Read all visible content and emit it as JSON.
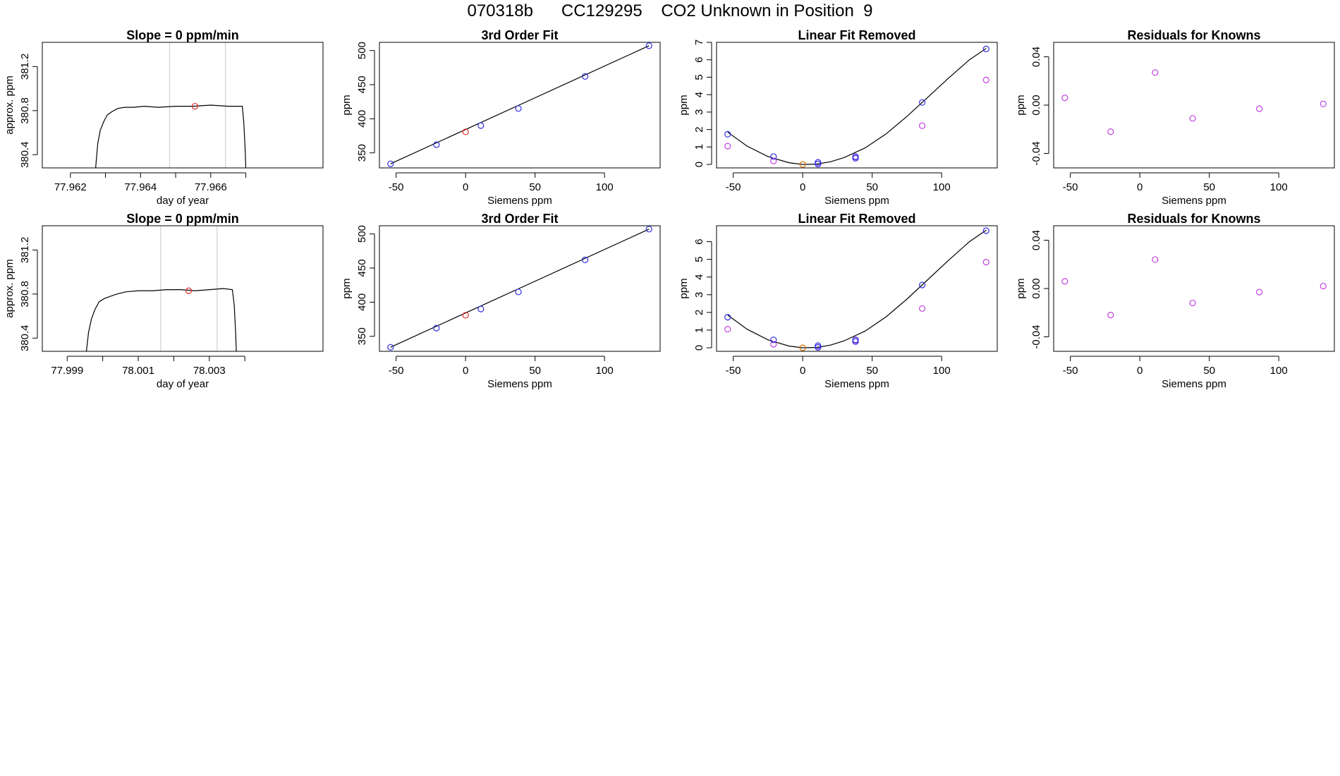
{
  "header": {
    "title": "070318b      CC129295    CO2 Unknown in Position  9"
  },
  "colors": {
    "known": "#2f2fe0",
    "unknown": "#e02f2f",
    "removed": "#d07000",
    "residual": "#c040e0",
    "line": "#000000",
    "refline": "#c8c8c8"
  },
  "chart_data": [
    {
      "type": "line",
      "title": "Slope =  0  ppm/min",
      "xlabel": "day of year",
      "ylabel": "approx. ppm",
      "xlim": [
        77.9612,
        77.9692
      ],
      "ylim": [
        380.28,
        381.42
      ],
      "xticks": [
        77.962,
        77.963,
        77.964,
        77.965,
        77.966,
        77.967
      ],
      "xtick_labels": [
        "77.962",
        "",
        "77.964",
        "",
        "77.966",
        ""
      ],
      "yticks": [
        380.4,
        380.8,
        381.2
      ],
      "ytick_labels": [
        "380.4",
        "380.8",
        "381.2"
      ],
      "vlines": [
        77.96483,
        77.96642
      ],
      "series": [
        {
          "x": [
            77.96272,
            77.96278,
            77.96285,
            77.96295,
            77.96305,
            77.96318,
            77.96335,
            77.96355,
            77.9638,
            77.9641,
            77.9645,
            77.965,
            77.9655,
            77.966,
            77.9665,
            77.9668,
            77.9669,
            77.96694,
            77.96698,
            77.967
          ],
          "y": [
            380.28,
            380.5,
            380.62,
            380.7,
            380.76,
            380.79,
            380.82,
            380.83,
            380.83,
            380.84,
            380.83,
            380.84,
            380.84,
            380.85,
            380.84,
            380.84,
            380.84,
            380.7,
            380.45,
            380.28
          ]
        }
      ],
      "marker": {
        "x": 77.96555,
        "y": 380.84
      }
    },
    {
      "type": "scatter",
      "title": "3rd Order Fit",
      "xlabel": "Siemens ppm",
      "ylabel": "ppm",
      "xlim": [
        -62,
        140
      ],
      "ylim": [
        328,
        512
      ],
      "xticks": [
        -50,
        0,
        50,
        100
      ],
      "xtick_labels": [
        "-50",
        "0",
        "50",
        "100"
      ],
      "yticks": [
        350,
        400,
        450,
        500
      ],
      "ytick_labels": [
        "350",
        "400",
        "450",
        "500"
      ],
      "known": {
        "x": [
          -54,
          -21,
          11,
          38,
          86,
          132
        ],
        "y": [
          334,
          362,
          390,
          415,
          462,
          507
        ]
      },
      "unknown": {
        "x": [
          0
        ],
        "y": [
          380.8
        ]
      },
      "fit": {
        "x": [
          -54,
          132
        ],
        "y": [
          334,
          507
        ]
      }
    },
    {
      "type": "scatter",
      "title": "Linear Fit Removed",
      "xlabel": "Siemens ppm",
      "ylabel": "ppm",
      "xlim": [
        -62,
        140
      ],
      "ylim": [
        -0.2,
        7.0
      ],
      "xticks": [
        -50,
        0,
        50,
        100
      ],
      "xtick_labels": [
        "-50",
        "0",
        "50",
        "100"
      ],
      "yticks": [
        0,
        1,
        2,
        3,
        4,
        5,
        6,
        7
      ],
      "ytick_labels": [
        "0",
        "1",
        "2",
        "3",
        "4",
        "5",
        "6",
        "7"
      ],
      "known": {
        "x": [
          -54,
          -21,
          11,
          11,
          38,
          38,
          86,
          132
        ],
        "y": [
          1.73,
          0.45,
          0.12,
          0.03,
          0.35,
          0.45,
          3.55,
          6.62
        ]
      },
      "residual": {
        "x": [
          -54,
          -21,
          11,
          38,
          86,
          132
        ],
        "y": [
          1.05,
          0.2,
          0.02,
          0.42,
          2.22,
          4.84
        ]
      },
      "unknown": {
        "x": [
          0
        ],
        "y": [
          0.0
        ]
      },
      "curve": {
        "x": [
          -54,
          -40,
          -25,
          -10,
          0,
          10,
          20,
          30,
          45,
          60,
          75,
          90,
          105,
          120,
          132
        ],
        "y": [
          1.85,
          1.05,
          0.45,
          0.1,
          0.0,
          0.02,
          0.15,
          0.4,
          0.95,
          1.75,
          2.75,
          3.85,
          4.95,
          6.0,
          6.65
        ]
      }
    },
    {
      "type": "scatter",
      "title": "Residuals for Knowns",
      "xlabel": "Siemens ppm",
      "ylabel": "ppm",
      "xlim": [
        -62,
        140
      ],
      "ylim": [
        -0.052,
        0.052
      ],
      "xticks": [
        -50,
        0,
        50,
        100
      ],
      "xtick_labels": [
        "-50",
        "0",
        "50",
        "100"
      ],
      "yticks": [
        -0.04,
        0.0,
        0.04
      ],
      "ytick_labels": [
        "-0.04",
        "0.00",
        "0.04"
      ],
      "residual": {
        "x": [
          -54,
          -21,
          11,
          38,
          86,
          132
        ],
        "y": [
          0.006,
          -0.022,
          0.027,
          -0.011,
          -0.003,
          0.001
        ]
      }
    },
    {
      "type": "line",
      "title": "Slope =  0  ppm/min",
      "xlabel": "day of year",
      "ylabel": "approx. ppm",
      "xlim": [
        77.9983,
        78.0062
      ],
      "ylim": [
        380.28,
        381.42
      ],
      "xticks": [
        77.999,
        78.0,
        78.001,
        78.002,
        78.003,
        78.004
      ],
      "xtick_labels": [
        "77.999",
        "",
        "78.001",
        "",
        "78.003",
        ""
      ],
      "yticks": [
        380.4,
        380.8,
        381.2
      ],
      "ytick_labels": [
        "380.4",
        "380.8",
        "381.2"
      ],
      "vlines": [
        78.00163,
        78.00322
      ],
      "series": [
        {
          "x": [
            77.99954,
            77.9996,
            77.99968,
            77.99978,
            77.9999,
            78.00005,
            78.00022,
            78.0004,
            78.00065,
            78.001,
            78.0014,
            78.0018,
            78.0022,
            78.0026,
            78.003,
            78.0034,
            78.00365,
            78.0037,
            78.00374,
            78.00376
          ],
          "y": [
            380.28,
            380.45,
            380.57,
            380.66,
            380.73,
            380.76,
            380.78,
            380.8,
            380.82,
            380.83,
            380.83,
            380.84,
            380.84,
            380.83,
            380.84,
            380.85,
            380.84,
            380.7,
            380.45,
            380.28
          ]
        }
      ],
      "marker": {
        "x": 78.00242,
        "y": 380.83
      }
    },
    {
      "type": "scatter",
      "title": "3rd Order Fit",
      "xlabel": "Siemens ppm",
      "ylabel": "ppm",
      "xlim": [
        -62,
        140
      ],
      "ylim": [
        328,
        512
      ],
      "xticks": [
        -50,
        0,
        50,
        100
      ],
      "xtick_labels": [
        "-50",
        "0",
        "50",
        "100"
      ],
      "yticks": [
        350,
        400,
        450,
        500
      ],
      "ytick_labels": [
        "350",
        "400",
        "450",
        "500"
      ],
      "known": {
        "x": [
          -54,
          -21,
          11,
          38,
          86,
          132
        ],
        "y": [
          334,
          362,
          390,
          415,
          462,
          507
        ]
      },
      "unknown": {
        "x": [
          0
        ],
        "y": [
          380.8
        ]
      },
      "fit": {
        "x": [
          -54,
          132
        ],
        "y": [
          334,
          507
        ]
      }
    },
    {
      "type": "scatter",
      "title": "Linear Fit Removed",
      "xlabel": "Siemens ppm",
      "ylabel": "ppm",
      "xlim": [
        -62,
        140
      ],
      "ylim": [
        -0.2,
        6.9
      ],
      "xticks": [
        -50,
        0,
        50,
        100
      ],
      "xtick_labels": [
        "-50",
        "0",
        "50",
        "100"
      ],
      "yticks": [
        0,
        1,
        2,
        3,
        4,
        5,
        6
      ],
      "ytick_labels": [
        "0",
        "1",
        "2",
        "3",
        "4",
        "5",
        "6"
      ],
      "known": {
        "x": [
          -54,
          -21,
          11,
          11,
          38,
          38,
          86,
          132
        ],
        "y": [
          1.73,
          0.45,
          0.12,
          0.03,
          0.35,
          0.45,
          3.55,
          6.62
        ]
      },
      "residual": {
        "x": [
          -54,
          -21,
          11,
          38,
          86,
          132
        ],
        "y": [
          1.05,
          0.2,
          0.02,
          0.42,
          2.22,
          4.84
        ]
      },
      "unknown": {
        "x": [
          0
        ],
        "y": [
          0.0
        ]
      },
      "curve": {
        "x": [
          -54,
          -40,
          -25,
          -10,
          0,
          10,
          20,
          30,
          45,
          60,
          75,
          90,
          105,
          120,
          132
        ],
        "y": [
          1.85,
          1.05,
          0.45,
          0.1,
          0.0,
          0.02,
          0.15,
          0.4,
          0.95,
          1.75,
          2.75,
          3.85,
          4.95,
          6.0,
          6.65
        ]
      }
    },
    {
      "type": "scatter",
      "title": "Residuals for Knowns",
      "xlabel": "Siemens ppm",
      "ylabel": "ppm",
      "xlim": [
        -62,
        140
      ],
      "ylim": [
        -0.052,
        0.052
      ],
      "xticks": [
        -50,
        0,
        50,
        100
      ],
      "xtick_labels": [
        "-50",
        "0",
        "50",
        "100"
      ],
      "yticks": [
        -0.04,
        0.0,
        0.04
      ],
      "ytick_labels": [
        "-0.04",
        "0.00",
        "0.04"
      ],
      "residual": {
        "x": [
          -54,
          -21,
          11,
          38,
          86,
          132
        ],
        "y": [
          0.006,
          -0.022,
          0.024,
          -0.012,
          -0.003,
          0.002
        ]
      }
    }
  ]
}
